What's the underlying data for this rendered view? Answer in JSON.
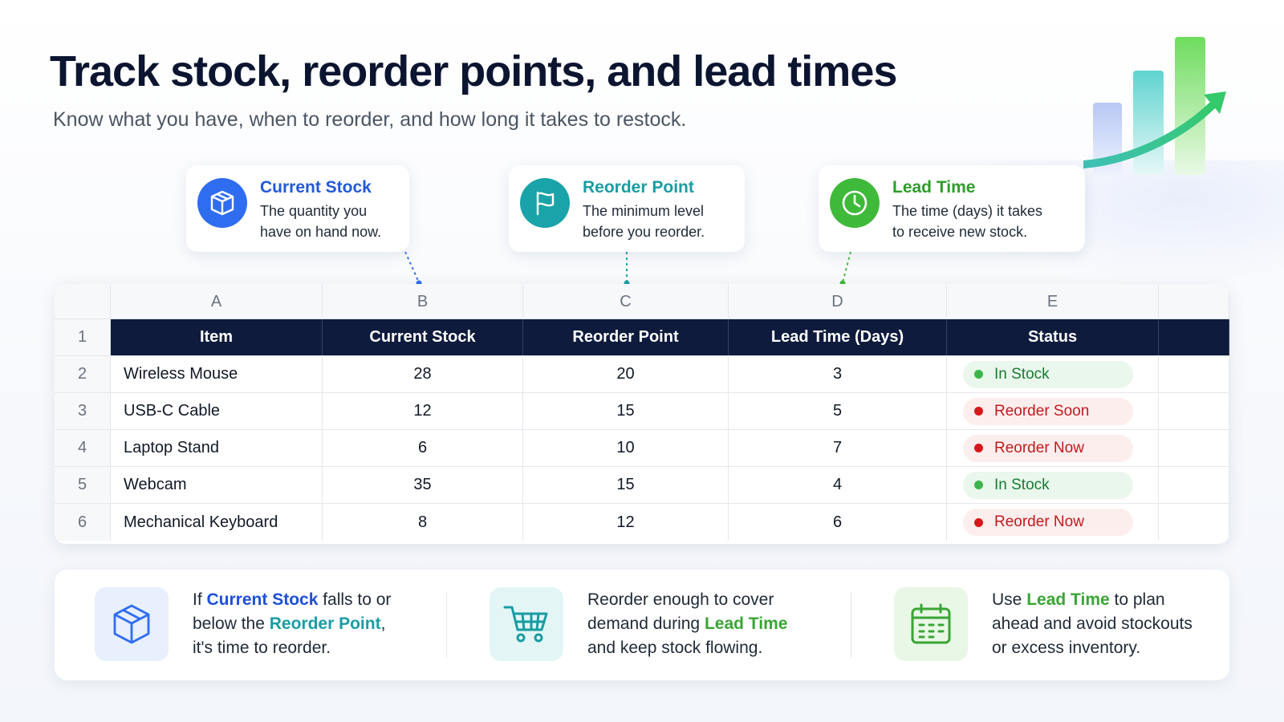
{
  "header": {
    "title": "Track stock, reorder points, and lead times",
    "subtitle": "Know what you have, when to reorder, and how long it takes to restock."
  },
  "callouts": [
    {
      "title": "Current Stock",
      "line1": "The quantity you",
      "line2": "have on hand now.",
      "icon": "box-icon",
      "color": "#2f6df0"
    },
    {
      "title": "Reorder Point",
      "line1": "The minimum level",
      "line2": "before you reorder.",
      "icon": "flag-icon",
      "color": "#1aa3a8"
    },
    {
      "title": "Lead Time",
      "line1": "The time (days) it takes",
      "line2": "to receive new stock.",
      "icon": "clock-icon",
      "color": "#3fb93a"
    }
  ],
  "sheet": {
    "column_letters": [
      "A",
      "B",
      "C",
      "D",
      "E"
    ],
    "row_numbers": [
      "1",
      "2",
      "3",
      "4",
      "5",
      "6"
    ],
    "headers": [
      "Item",
      "Current Stock",
      "Reorder Point",
      "Lead Time (Days)",
      "Status"
    ],
    "rows": [
      {
        "item": "Wireless Mouse",
        "stock": "28",
        "reorder": "20",
        "lead": "3",
        "status": "In Stock"
      },
      {
        "item": "USB-C Cable",
        "stock": "12",
        "reorder": "15",
        "lead": "5",
        "status": "Reorder Soon"
      },
      {
        "item": "Laptop Stand",
        "stock": "6",
        "reorder": "10",
        "lead": "7",
        "status": "Reorder Now"
      },
      {
        "item": "Webcam",
        "stock": "35",
        "reorder": "15",
        "lead": "4",
        "status": "In Stock"
      },
      {
        "item": "Mechanical Keyboard",
        "stock": "8",
        "reorder": "12",
        "lead": "6",
        "status": "Reorder Now"
      }
    ]
  },
  "tips": {
    "tip1": {
      "a": "If ",
      "b": "Current Stock",
      "c": " falls to or",
      "d": "below the ",
      "e": "Reorder Point",
      "f": ",",
      "g": "it's time to reorder."
    },
    "tip2": {
      "a": "Reorder enough to cover",
      "b": "demand during ",
      "c": "Lead Time",
      "d": "and keep stock flowing."
    },
    "tip3": {
      "a": "Use ",
      "b": "Lead Time",
      "c": " to plan",
      "d": "ahead and avoid stockouts",
      "e": "or excess inventory."
    }
  },
  "colors": {
    "navy": "#0e1b3d",
    "in_stock": "#3cb64a",
    "reorder": "#d7191c",
    "blue": "#1d4fd8",
    "teal": "#1a9ca3",
    "green": "#3aa535"
  }
}
